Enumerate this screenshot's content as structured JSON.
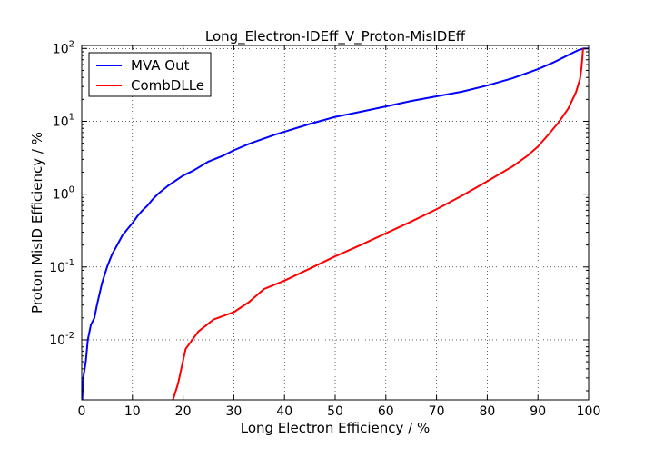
{
  "chart_data": {
    "type": "line",
    "title": "Long_Electron-IDEff_V_Proton-MisIDEff",
    "xlabel": "Long Electron Efficiency / %",
    "ylabel": "Proton MisID Efficiency / %",
    "xlim": [
      0,
      100
    ],
    "ylim": [
      0.0015,
      110
    ],
    "yscale": "log",
    "grid": true,
    "legend": "top-left",
    "x_ticks": [
      "0",
      "10",
      "20",
      "30",
      "40",
      "50",
      "60",
      "70",
      "80",
      "90",
      "100"
    ],
    "y_ticks": [
      {
        "base": "10",
        "exp": "-2"
      },
      {
        "base": "10",
        "exp": "-1"
      },
      {
        "base": "10",
        "exp": "0"
      },
      {
        "base": "10",
        "exp": "1"
      },
      {
        "base": "10",
        "exp": "2"
      }
    ],
    "series": [
      {
        "name": "MVA Out",
        "color": "#0000ff",
        "points": [
          [
            0.1,
            0.0015
          ],
          [
            0.3,
            0.003
          ],
          [
            0.8,
            0.005
          ],
          [
            1.2,
            0.01
          ],
          [
            1.8,
            0.016
          ],
          [
            2.5,
            0.02
          ],
          [
            3.0,
            0.03
          ],
          [
            4.0,
            0.06
          ],
          [
            5.0,
            0.1
          ],
          [
            6.0,
            0.15
          ],
          [
            7.0,
            0.2
          ],
          [
            8.0,
            0.27
          ],
          [
            9.0,
            0.33
          ],
          [
            10.0,
            0.4
          ],
          [
            11.0,
            0.5
          ],
          [
            12.0,
            0.6
          ],
          [
            13.0,
            0.7
          ],
          [
            14.0,
            0.85
          ],
          [
            15.0,
            1.0
          ],
          [
            17.0,
            1.3
          ],
          [
            20.0,
            1.8
          ],
          [
            22.0,
            2.1
          ],
          [
            25.0,
            2.8
          ],
          [
            28.0,
            3.4
          ],
          [
            30.0,
            4.0
          ],
          [
            33.0,
            4.9
          ],
          [
            35.0,
            5.5
          ],
          [
            38.0,
            6.5
          ],
          [
            40.0,
            7.2
          ],
          [
            45.0,
            9.2
          ],
          [
            50.0,
            11.5
          ],
          [
            55.0,
            13.5
          ],
          [
            60.0,
            16.0
          ],
          [
            65.0,
            19.0
          ],
          [
            70.0,
            22.0
          ],
          [
            75.0,
            25.5
          ],
          [
            80.0,
            31.0
          ],
          [
            85.0,
            39.0
          ],
          [
            90.0,
            52.0
          ],
          [
            93.0,
            64.0
          ],
          [
            95.0,
            75.0
          ],
          [
            97.0,
            88.0
          ],
          [
            98.0,
            95.0
          ],
          [
            99.0,
            100.0
          ],
          [
            100.0,
            100.0
          ]
        ]
      },
      {
        "name": "CombDLLe",
        "color": "#ff0000",
        "points": [
          [
            18.0,
            0.0015
          ],
          [
            19.0,
            0.0025
          ],
          [
            20.5,
            0.0075
          ],
          [
            23.0,
            0.013
          ],
          [
            26.0,
            0.019
          ],
          [
            30.0,
            0.024
          ],
          [
            33.0,
            0.033
          ],
          [
            36.0,
            0.05
          ],
          [
            40.0,
            0.065
          ],
          [
            45.0,
            0.095
          ],
          [
            50.0,
            0.14
          ],
          [
            55.0,
            0.2
          ],
          [
            60.0,
            0.29
          ],
          [
            65.0,
            0.42
          ],
          [
            70.0,
            0.62
          ],
          [
            75.0,
            0.95
          ],
          [
            80.0,
            1.5
          ],
          [
            85.0,
            2.4
          ],
          [
            88.0,
            3.4
          ],
          [
            90.0,
            4.5
          ],
          [
            92.0,
            6.5
          ],
          [
            94.0,
            9.5
          ],
          [
            96.0,
            15.0
          ],
          [
            97.5,
            25.0
          ],
          [
            98.3,
            38.0
          ],
          [
            98.6,
            55.0
          ],
          [
            98.8,
            80.0
          ],
          [
            98.9,
            100.0
          ]
        ]
      }
    ]
  }
}
